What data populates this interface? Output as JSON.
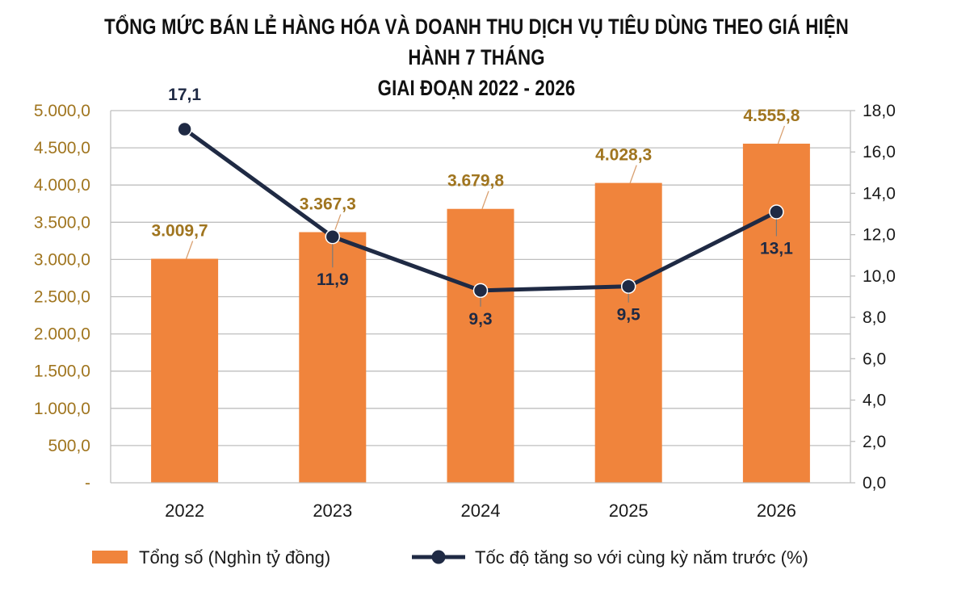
{
  "title_line1": "TỔNG MỨC BÁN LẺ HÀNG HÓA VÀ DOANH THU DỊCH VỤ TIÊU DÙNG THEO GIÁ HIỆN HÀNH 7 THÁNG",
  "title_line2": "GIAI ĐOẠN 2022 - 2026",
  "colors": {
    "bar": "#f0843c",
    "line": "#1f2a44",
    "grid": "#bfbfbf",
    "left_tick": "#a0751f"
  },
  "chart_data": {
    "type": "bar",
    "categories": [
      "2022",
      "2023",
      "2024",
      "2025",
      "2026"
    ],
    "series": [
      {
        "name": "Tổng số (Nghìn tỷ đồng)",
        "type": "bar",
        "axis": "left",
        "values": [
          3009.7,
          3367.3,
          3679.8,
          4028.3,
          4555.8
        ],
        "labels": [
          "3.009,7",
          "3.367,3",
          "3.679,8",
          "4.028,3",
          "4.555,8"
        ]
      },
      {
        "name": "Tốc độ tăng so với cùng kỳ năm trước (%)",
        "type": "line",
        "axis": "right",
        "values": [
          17.1,
          11.9,
          9.3,
          9.5,
          13.1
        ],
        "labels": [
          "17,1",
          "11,9",
          "9,3",
          "9,5",
          "13,1"
        ]
      }
    ],
    "y_left": {
      "lim": [
        0,
        5000
      ],
      "ticks": [
        0,
        500,
        1000,
        1500,
        2000,
        2500,
        3000,
        3500,
        4000,
        4500,
        5000
      ],
      "tick_labels": [
        "-",
        "500,0",
        "1.000,0",
        "1.500,0",
        "2.000,0",
        "2.500,0",
        "3.000,0",
        "3.500,0",
        "4.000,0",
        "4.500,0",
        "5.000,0"
      ]
    },
    "y_right": {
      "lim": [
        0,
        18
      ],
      "ticks": [
        0,
        2,
        4,
        6,
        8,
        10,
        12,
        14,
        16,
        18
      ],
      "tick_labels": [
        "0,0",
        "2,0",
        "4,0",
        "6,0",
        "8,0",
        "10,0",
        "12,0",
        "14,0",
        "16,0",
        "18,0"
      ]
    },
    "grid": true,
    "legend": "bottom"
  }
}
